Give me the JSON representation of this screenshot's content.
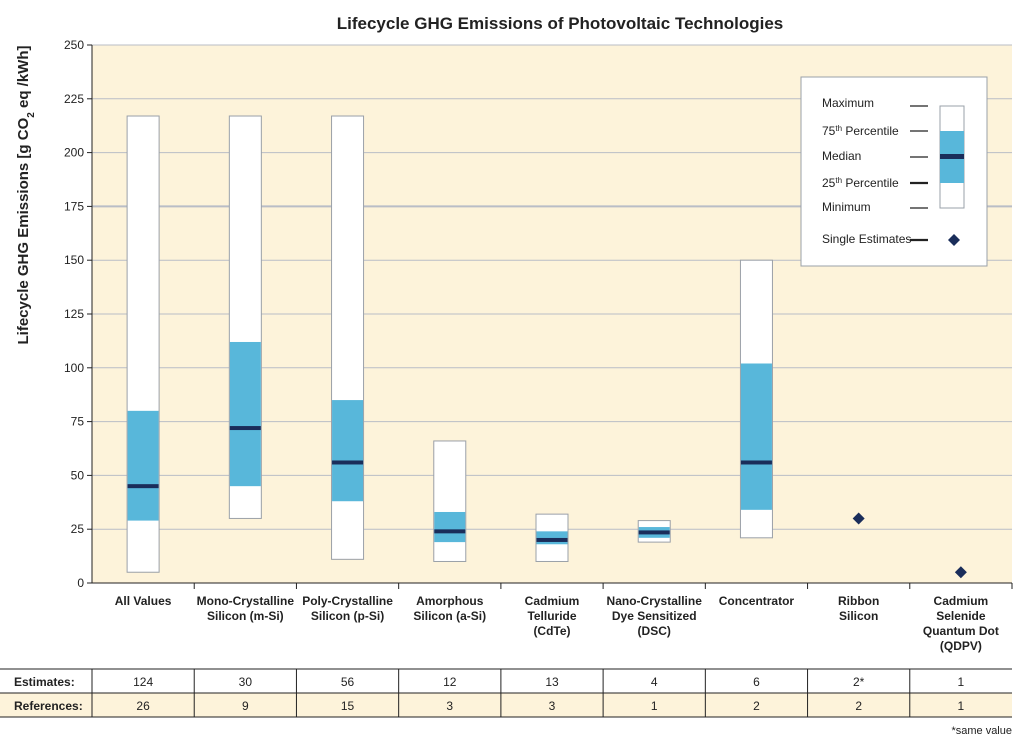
{
  "chart_data": {
    "type": "boxplot",
    "title": "Lifecycle GHG Emissions of Photovoltaic Technologies",
    "ylabel": "Lifecycle GHG Emissions [g CO2 eq /kWh]",
    "ylabel_parts": {
      "pre": "Lifecycle GHG Emissions [g CO",
      "sub": "2",
      "post": " eq /kWh]"
    },
    "ylim": [
      0,
      250
    ],
    "yticks": [
      0,
      25,
      50,
      75,
      100,
      125,
      150,
      175,
      200,
      225,
      250
    ],
    "grid": true,
    "legend_position": "top-right",
    "categories": [
      {
        "label": [
          "All Values"
        ],
        "min": 5,
        "q1": 29,
        "median": 45,
        "q3": 80,
        "max": 217
      },
      {
        "label": [
          "Mono-Crystalline",
          "Silicon (m-Si)"
        ],
        "min": 30,
        "q1": 45,
        "median": 72,
        "q3": 112,
        "max": 217
      },
      {
        "label": [
          "Poly-Crystalline",
          "Silicon (p-Si)"
        ],
        "min": 11,
        "q1": 38,
        "median": 56,
        "q3": 85,
        "max": 217
      },
      {
        "label": [
          "Amorphous",
          "Silicon (a-Si)"
        ],
        "min": 10,
        "q1": 19,
        "median": 24,
        "q3": 33,
        "max": 66
      },
      {
        "label": [
          "Cadmium",
          "Telluride",
          "(CdTe)"
        ],
        "min": 10,
        "q1": 18,
        "median": 20,
        "q3": 24,
        "max": 32
      },
      {
        "label": [
          "Nano-Crystalline",
          "Dye Sensitized",
          "(DSC)"
        ],
        "min": 19,
        "q1": 21,
        "median": 23.5,
        "q3": 26,
        "max": 29
      },
      {
        "label": [
          "Concentrator"
        ],
        "min": 21,
        "q1": 34,
        "median": 56,
        "q3": 102,
        "max": 150
      },
      {
        "label": [
          "Ribbon",
          "Silicon"
        ],
        "single_estimate": 30
      },
      {
        "label": [
          "Cadmium",
          "Selenide",
          "Quantum Dot",
          "(QDPV)"
        ],
        "single_estimate": 5
      }
    ],
    "legend": {
      "maximum": "Maximum",
      "p75": {
        "pre": "75",
        "sup": "th",
        "post": "  Percentile"
      },
      "median": "Median",
      "p25": {
        "pre": "25",
        "sup": "th",
        "post": " Percentile"
      },
      "minimum": "Minimum",
      "single": "Single Estimates"
    },
    "table": {
      "estimates_label": "Estimates:",
      "references_label": "References:",
      "estimates": [
        "124",
        "30",
        "56",
        "12",
        "13",
        "4",
        "6",
        "2*",
        "1"
      ],
      "references": [
        "26",
        "9",
        "15",
        "3",
        "3",
        "1",
        "2",
        "2",
        "1"
      ]
    },
    "footnote": "*same value"
  },
  "colors": {
    "plot_bg": "#fdf3da",
    "iqr": "#58b7da",
    "median": "#1a2d5a",
    "marker": "#1a2d5a",
    "grid": "#b9bdc6",
    "table_row_bg": "#fdf3da"
  }
}
